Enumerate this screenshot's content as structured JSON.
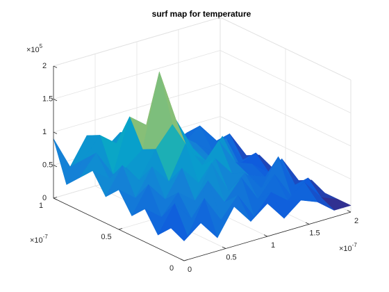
{
  "chart_data": {
    "type": "surface",
    "title": "surf map for temperature",
    "colormap": "parula",
    "grid": true,
    "x": [
      0,
      0.2,
      0.4,
      0.6,
      0.8,
      1.0,
      1.2,
      1.4,
      1.6,
      1.8,
      2.0
    ],
    "y": [
      0,
      0.1,
      0.2,
      0.3,
      0.4,
      0.5,
      0.6,
      0.7,
      0.8,
      0.9,
      1.0
    ],
    "z": [
      [
        0.3,
        0.5,
        0.2,
        0.6,
        0.3,
        0.5,
        0.2,
        0.4,
        0.3,
        0.1,
        0.1
      ],
      [
        0.4,
        0.2,
        0.7,
        0.3,
        0.6,
        0.2,
        0.5,
        0.3,
        0.5,
        0.2,
        0.1
      ],
      [
        0.2,
        0.6,
        0.3,
        0.8,
        0.4,
        0.7,
        0.3,
        0.6,
        0.2,
        0.4,
        0.1
      ],
      [
        0.5,
        0.3,
        0.6,
        0.4,
        0.9,
        0.4,
        0.6,
        0.3,
        0.7,
        0.2,
        0.2
      ],
      [
        0.3,
        0.7,
        0.4,
        0.8,
        0.5,
        0.8,
        0.5,
        0.4,
        0.3,
        0.5,
        0.1
      ],
      [
        0.6,
        0.4,
        0.8,
        0.5,
        1.0,
        0.6,
        0.9,
        0.5,
        0.4,
        0.2,
        0.2
      ],
      [
        0.4,
        0.8,
        0.5,
        0.9,
        1.2,
        0.7,
        0.5,
        0.8,
        0.3,
        0.4,
        0.1
      ],
      [
        0.7,
        0.5,
        0.6,
        0.8,
        1.9,
        1.1,
        0.6,
        0.4,
        0.6,
        0.2,
        0.2
      ],
      [
        0.5,
        0.8,
        0.4,
        1.2,
        1.0,
        1.3,
        0.7,
        0.5,
        0.3,
        0.5,
        0.1
      ],
      [
        0.3,
        0.6,
        0.9,
        0.7,
        0.8,
        0.6,
        0.9,
        0.4,
        0.6,
        0.3,
        0.2
      ],
      [
        0.9,
        0.4,
        0.8,
        0.5,
        0.7,
        0.4,
        0.6,
        0.3,
        0.4,
        0.2,
        0.1
      ]
    ],
    "xlim": [
      0,
      2
    ],
    "xticks": [
      0,
      0.5,
      1,
      1.5,
      2
    ],
    "ylim": [
      0,
      1
    ],
    "yticks": [
      0,
      0.5,
      1
    ],
    "zlim": [
      0,
      2
    ],
    "zticks": [
      0,
      0.5,
      1,
      1.5,
      2
    ],
    "x_exponent": {
      "base": "×10",
      "power": "-7"
    },
    "y_exponent": {
      "base": "×10",
      "power": "-7"
    },
    "z_exponent": {
      "base": "×10",
      "power": "5"
    }
  }
}
